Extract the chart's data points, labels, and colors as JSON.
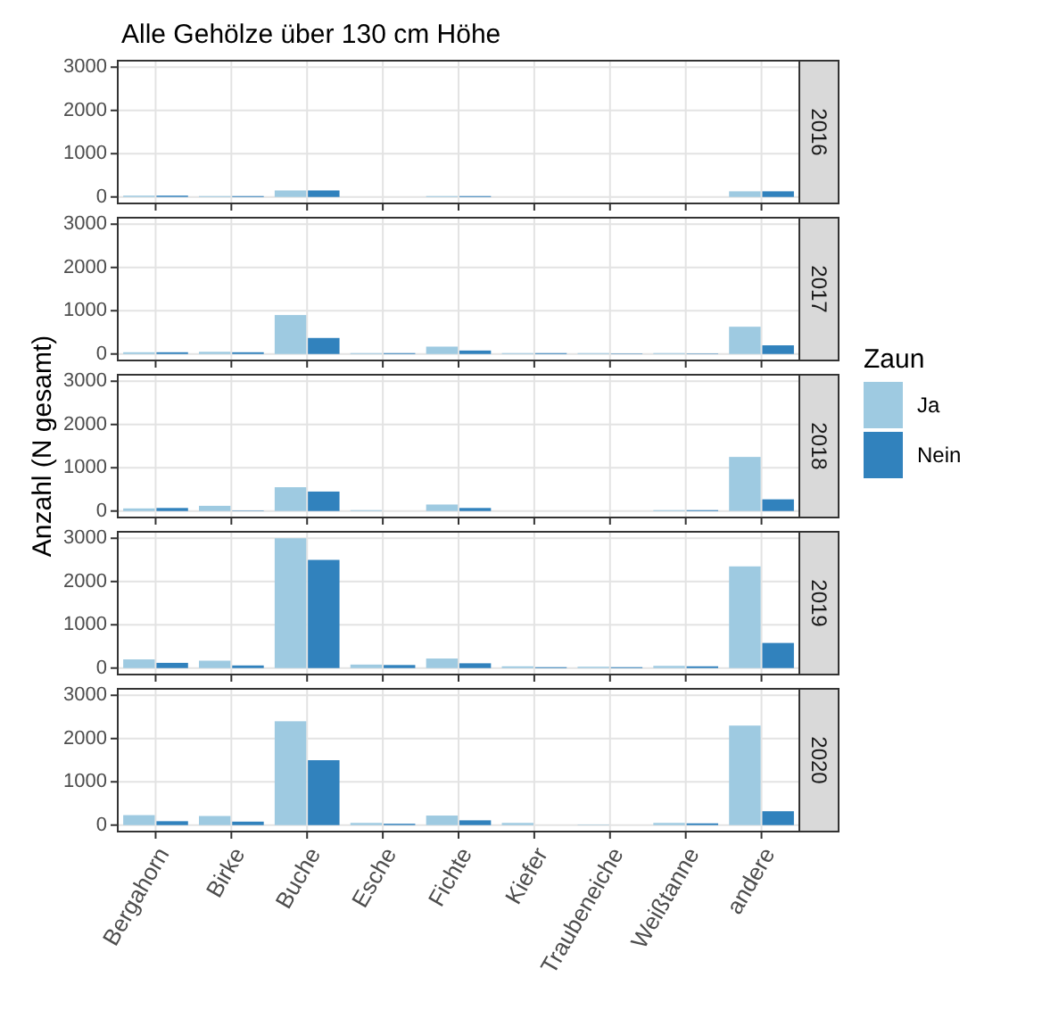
{
  "chart_data": [
    {
      "type": "bar",
      "title": "Alle Gehölze über 130 cm Höhe",
      "subtitle": "2016",
      "categories": [
        null,
        null,
        null,
        null,
        null,
        null,
        null,
        null,
        null
      ],
      "series": [
        {
          "color": "#9ecae1",
          "values": [
            30,
            20,
            150,
            0,
            20,
            0,
            0,
            0,
            130
          ]
        },
        {
          "color": "#3182bd",
          "values": [
            30,
            20,
            150,
            0,
            20,
            0,
            0,
            0,
            130
          ]
        }
      ],
      "ylim": [
        -150,
        3150
      ],
      "yticks": [
        0,
        1000,
        2000,
        3000
      ],
      "grid": true
    },
    {
      "type": "bar",
      "subtitle": "2017",
      "categories": [
        null,
        null,
        null,
        null,
        null,
        null,
        null,
        null,
        null
      ],
      "series": [
        {
          "color": "#9ecae1",
          "values": [
            40,
            50,
            900,
            20,
            170,
            20,
            20,
            20,
            630
          ]
        },
        {
          "color": "#3182bd",
          "values": [
            40,
            40,
            370,
            20,
            80,
            20,
            10,
            10,
            200
          ]
        }
      ],
      "ylim": [
        -150,
        3150
      ],
      "yticks": [
        0,
        1000,
        2000,
        3000
      ],
      "grid": true
    },
    {
      "type": "bar",
      "subtitle": "2018",
      "ylabel": "Anzahl (N gesamt)",
      "legend_title": "Zaun",
      "legend": "right",
      "categories": [
        null,
        null,
        null,
        null,
        null,
        null,
        null,
        null,
        null
      ],
      "series": [
        {
          "name": "Ja",
          "color": "#9ecae1",
          "values": [
            60,
            120,
            550,
            20,
            150,
            0,
            0,
            20,
            1250
          ]
        },
        {
          "name": "Nein",
          "color": "#3182bd",
          "values": [
            70,
            10,
            450,
            0,
            70,
            0,
            0,
            20,
            270
          ]
        }
      ],
      "ylim": [
        -150,
        3150
      ],
      "yticks": [
        0,
        1000,
        2000,
        3000
      ],
      "grid": true
    },
    {
      "type": "bar",
      "subtitle": "2019",
      "categories": [
        null,
        null,
        null,
        null,
        null,
        null,
        null,
        null,
        null
      ],
      "series": [
        {
          "color": "#9ecae1",
          "values": [
            200,
            170,
            3000,
            80,
            220,
            40,
            30,
            50,
            2350
          ]
        },
        {
          "color": "#3182bd",
          "values": [
            120,
            60,
            2500,
            70,
            110,
            20,
            20,
            40,
            580
          ]
        }
      ],
      "ylim": [
        -150,
        3150
      ],
      "yticks": [
        0,
        1000,
        2000,
        3000
      ],
      "grid": true
    },
    {
      "type": "bar",
      "subtitle": "2020",
      "categories": [
        "Bergahorn",
        "Birke",
        "Buche",
        "Esche",
        "Fichte",
        "Kiefer",
        "Traubeneiche",
        "Weißtanne",
        "andere"
      ],
      "series": [
        {
          "color": "#9ecae1",
          "values": [
            230,
            210,
            2400,
            50,
            220,
            50,
            10,
            50,
            2300
          ]
        },
        {
          "color": "#3182bd",
          "values": [
            90,
            80,
            1500,
            30,
            110,
            0,
            0,
            40,
            320
          ]
        }
      ],
      "ylim": [
        -150,
        3150
      ],
      "yticks": [
        0,
        1000,
        2000,
        3000
      ],
      "grid": true
    }
  ]
}
